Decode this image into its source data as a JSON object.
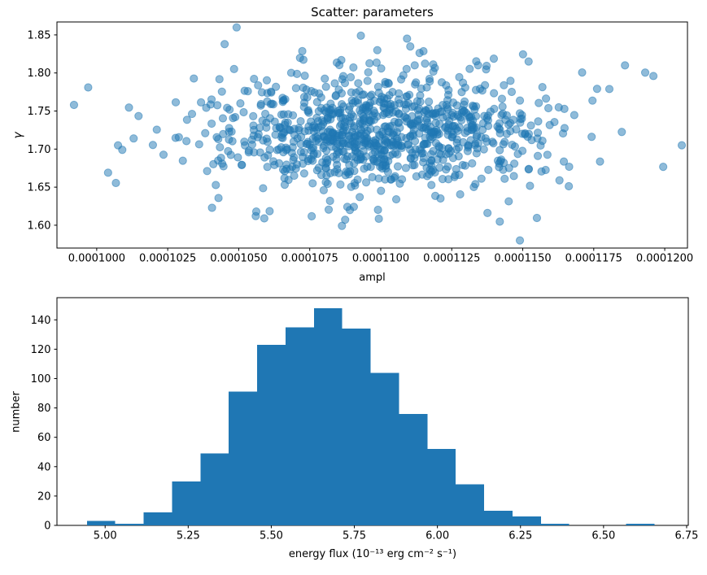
{
  "figure": {
    "background": "#ffffff",
    "accent_color": "#1f77b4"
  },
  "chart_data": [
    {
      "type": "scatter",
      "title": "Scatter: parameters",
      "xlabel": "ampl",
      "ylabel": "γ",
      "xlim": [
        9.86e-05,
        0.0001208
      ],
      "ylim": [
        1.57,
        1.867
      ],
      "xticks": [
        0.0001,
        0.0001025,
        0.000105,
        0.0001075,
        0.00011,
        0.0001125,
        0.000115,
        0.0001175,
        0.00012
      ],
      "xtick_labels": [
        "0.0001000",
        "0.0001025",
        "0.0001050",
        "0.0001075",
        "0.0001100",
        "0.0001125",
        "0.0001150",
        "0.0001175",
        "0.0001200"
      ],
      "yticks": [
        1.6,
        1.65,
        1.7,
        1.75,
        1.8,
        1.85
      ],
      "ytick_labels": [
        "1.60",
        "1.65",
        "1.70",
        "1.75",
        "1.80",
        "1.85"
      ],
      "n_points": 1000,
      "distribution": {
        "x_mean": 0.00011,
        "x_std": 3e-06,
        "y_mean": 1.724,
        "y_std": 0.04,
        "seed": 20
      },
      "notable_points": [
        [
          9.92e-05,
          1.758
        ],
        [
          9.97e-05,
          1.781
        ],
        [
          0.0001004,
          1.669
        ],
        [
          0.0001009,
          1.699
        ],
        [
          0.0001013,
          1.714
        ],
        [
          0.0001056,
          1.612
        ],
        [
          0.0001059,
          1.609
        ],
        [
          0.0001093,
          1.849
        ],
        [
          0.0001149,
          1.58
        ],
        [
          0.0001186,
          1.81
        ],
        [
          0.0001196,
          1.796
        ],
        [
          0.0001206,
          1.705
        ]
      ],
      "marker_color": "#1f77b4",
      "marker_alpha": 0.5,
      "marker_radius": 4.6,
      "grid": false,
      "legend": null
    },
    {
      "type": "histogram",
      "title": "",
      "xlabel": "energy flux (10⁻¹³ erg cm⁻² s⁻¹)",
      "ylabel": "number",
      "xlim": [
        4.855,
        6.755
      ],
      "ylim": [
        0,
        155.1
      ],
      "xticks": [
        5.0,
        5.25,
        5.5,
        5.75,
        6.0,
        6.25,
        6.5,
        6.75
      ],
      "xtick_labels": [
        "5.00",
        "5.25",
        "5.50",
        "5.75",
        "6.00",
        "6.25",
        "6.50",
        "6.75"
      ],
      "yticks": [
        0,
        20,
        40,
        60,
        80,
        100,
        120,
        140
      ],
      "ytick_labels": [
        "0",
        "20",
        "40",
        "60",
        "80",
        "100",
        "120",
        "140"
      ],
      "bin_start": 4.945,
      "bin_width": 0.0854,
      "counts": [
        3,
        1,
        9,
        30,
        49,
        91,
        123,
        135,
        148,
        134,
        104,
        76,
        52,
        28,
        10,
        6,
        1,
        0,
        0,
        1
      ],
      "bar_color": "#1f77b4",
      "grid": false,
      "legend": null
    }
  ]
}
